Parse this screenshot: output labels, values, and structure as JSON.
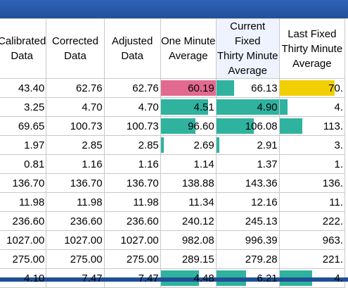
{
  "columns": [
    "Calibrated\nData",
    "Corrected\nData",
    "Adjusted\nData",
    "One Minute\nAverage",
    "Current Fixed\nThirty Minute\nAverage",
    "Last Fixed\nThirty Minute\nAverage"
  ],
  "rows": [
    {
      "cells": [
        "43.40",
        "62.76",
        "62.76",
        "60.19",
        "66.13",
        "70."
      ],
      "fills": [
        {
          "col": 3,
          "color": "#e26a91",
          "level": 1.0
        },
        {
          "col": 4,
          "color": "#2fb39f",
          "level": 0.28
        },
        {
          "col": 5,
          "color": "#f2cf00",
          "level": 0.85
        }
      ]
    },
    {
      "cells": [
        "3.25",
        "4.70",
        "4.70",
        "4.51",
        "4.90",
        "4."
      ],
      "fills": [
        {
          "col": 3,
          "color": "#2fb39f",
          "level": 0.86
        },
        {
          "col": 4,
          "color": "#2fb39f",
          "level": 1.0
        },
        {
          "col": 5,
          "color": "#2fb39f",
          "level": 0.12
        }
      ]
    },
    {
      "cells": [
        "69.65",
        "100.73",
        "100.73",
        "96.60",
        "106.08",
        "113."
      ],
      "fills": [
        {
          "col": 3,
          "color": "#2fb39f",
          "level": 0.63
        },
        {
          "col": 4,
          "color": "#2fb39f",
          "level": 0.6
        },
        {
          "col": 5,
          "color": "#2fb39f",
          "level": 0.35
        }
      ]
    },
    {
      "cells": [
        "1.97",
        "2.85",
        "2.85",
        "2.69",
        "2.91",
        "3."
      ],
      "fills": [
        {
          "col": 3,
          "color": "#2fb39f",
          "level": 0.05
        },
        {
          "col": 4,
          "color": "#2fb39f",
          "level": 0.03
        },
        {
          "col": 5,
          "color": "#2fb39f",
          "level": 0.0
        }
      ]
    },
    {
      "cells": [
        "0.81",
        "1.16",
        "1.16",
        "1.14",
        "1.37",
        "1."
      ],
      "fills": []
    },
    {
      "cells": [
        "136.70",
        "136.70",
        "136.70",
        "138.88",
        "143.36",
        "136."
      ],
      "fills": []
    },
    {
      "cells": [
        "11.98",
        "11.98",
        "11.98",
        "11.34",
        "12.16",
        "11."
      ],
      "fills": []
    },
    {
      "cells": [
        "236.60",
        "236.60",
        "236.60",
        "240.12",
        "245.13",
        "222."
      ],
      "fills": []
    },
    {
      "cells": [
        "1027.00",
        "1027.00",
        "1027.00",
        "982.08",
        "996.39",
        "963."
      ],
      "fills": []
    },
    {
      "cells": [
        "275.00",
        "275.00",
        "275.00",
        "289.15",
        "279.28",
        "221."
      ],
      "fills": []
    },
    {
      "cells": [
        "4.10",
        "7.47",
        "7.47",
        "4.48",
        "6.21",
        "4."
      ],
      "fills": [
        {
          "col": 3,
          "color": "#2fb39f",
          "level": 0.7
        },
        {
          "col": 4,
          "color": "#2fb39f",
          "level": 0.48
        },
        {
          "col": 5,
          "color": "#2fb39f",
          "level": 0.5
        }
      ]
    }
  ]
}
